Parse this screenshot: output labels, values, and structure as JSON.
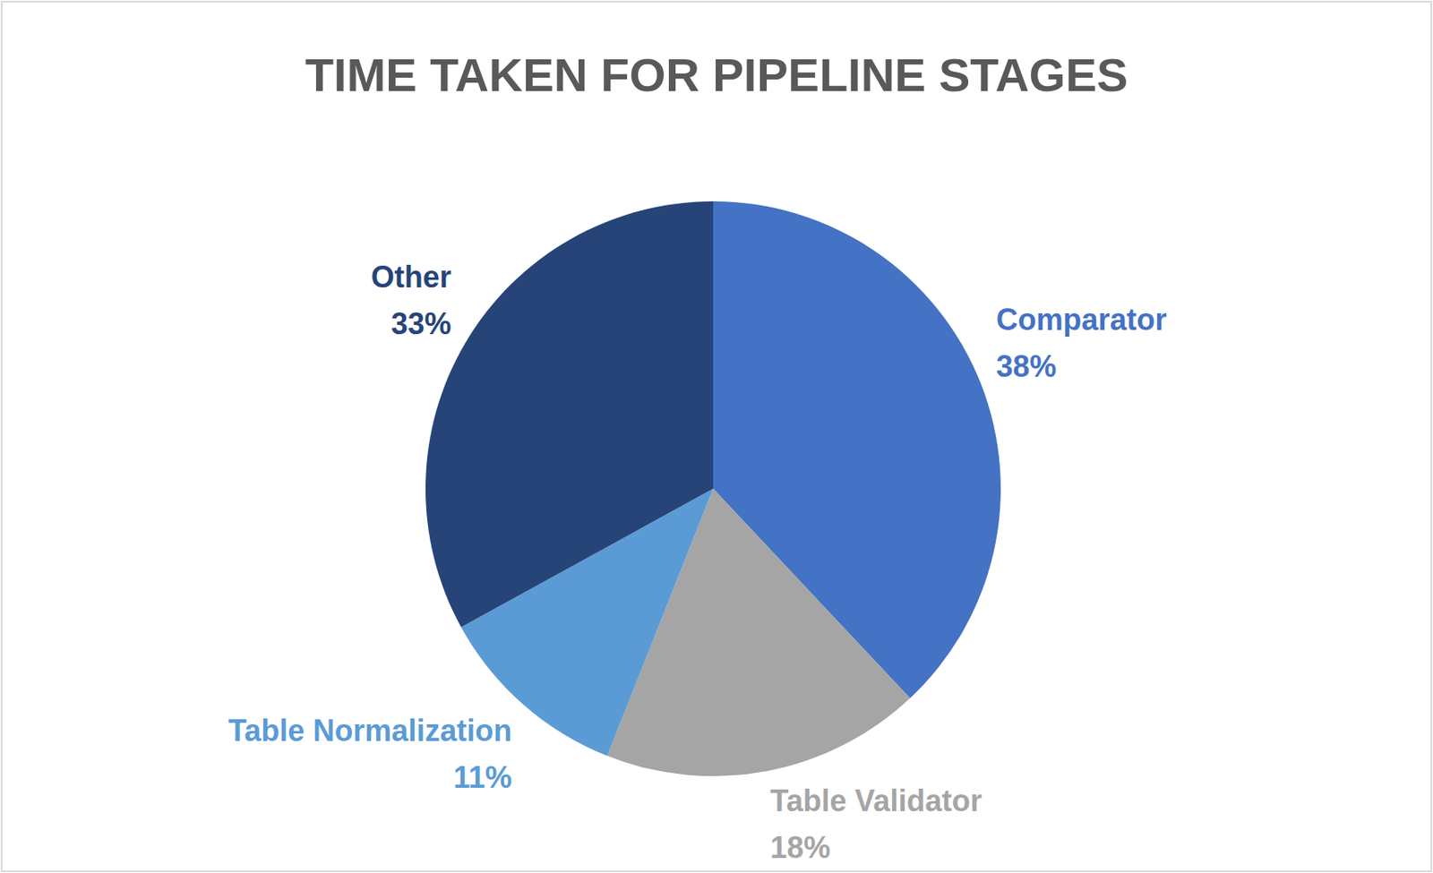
{
  "chart_data": {
    "type": "pie",
    "title": "TIME TAKEN FOR PIPELINE STAGES",
    "categories": [
      "Comparator",
      "Table Validator",
      "Table Normalization",
      "Other"
    ],
    "values": [
      38,
      18,
      11,
      33
    ],
    "value_labels": [
      "38%",
      "18%",
      "11%",
      "33%"
    ],
    "colors": [
      "#4472c4",
      "#a5a5a5",
      "#5b9bd5",
      "#264478"
    ],
    "data_labels": true
  }
}
